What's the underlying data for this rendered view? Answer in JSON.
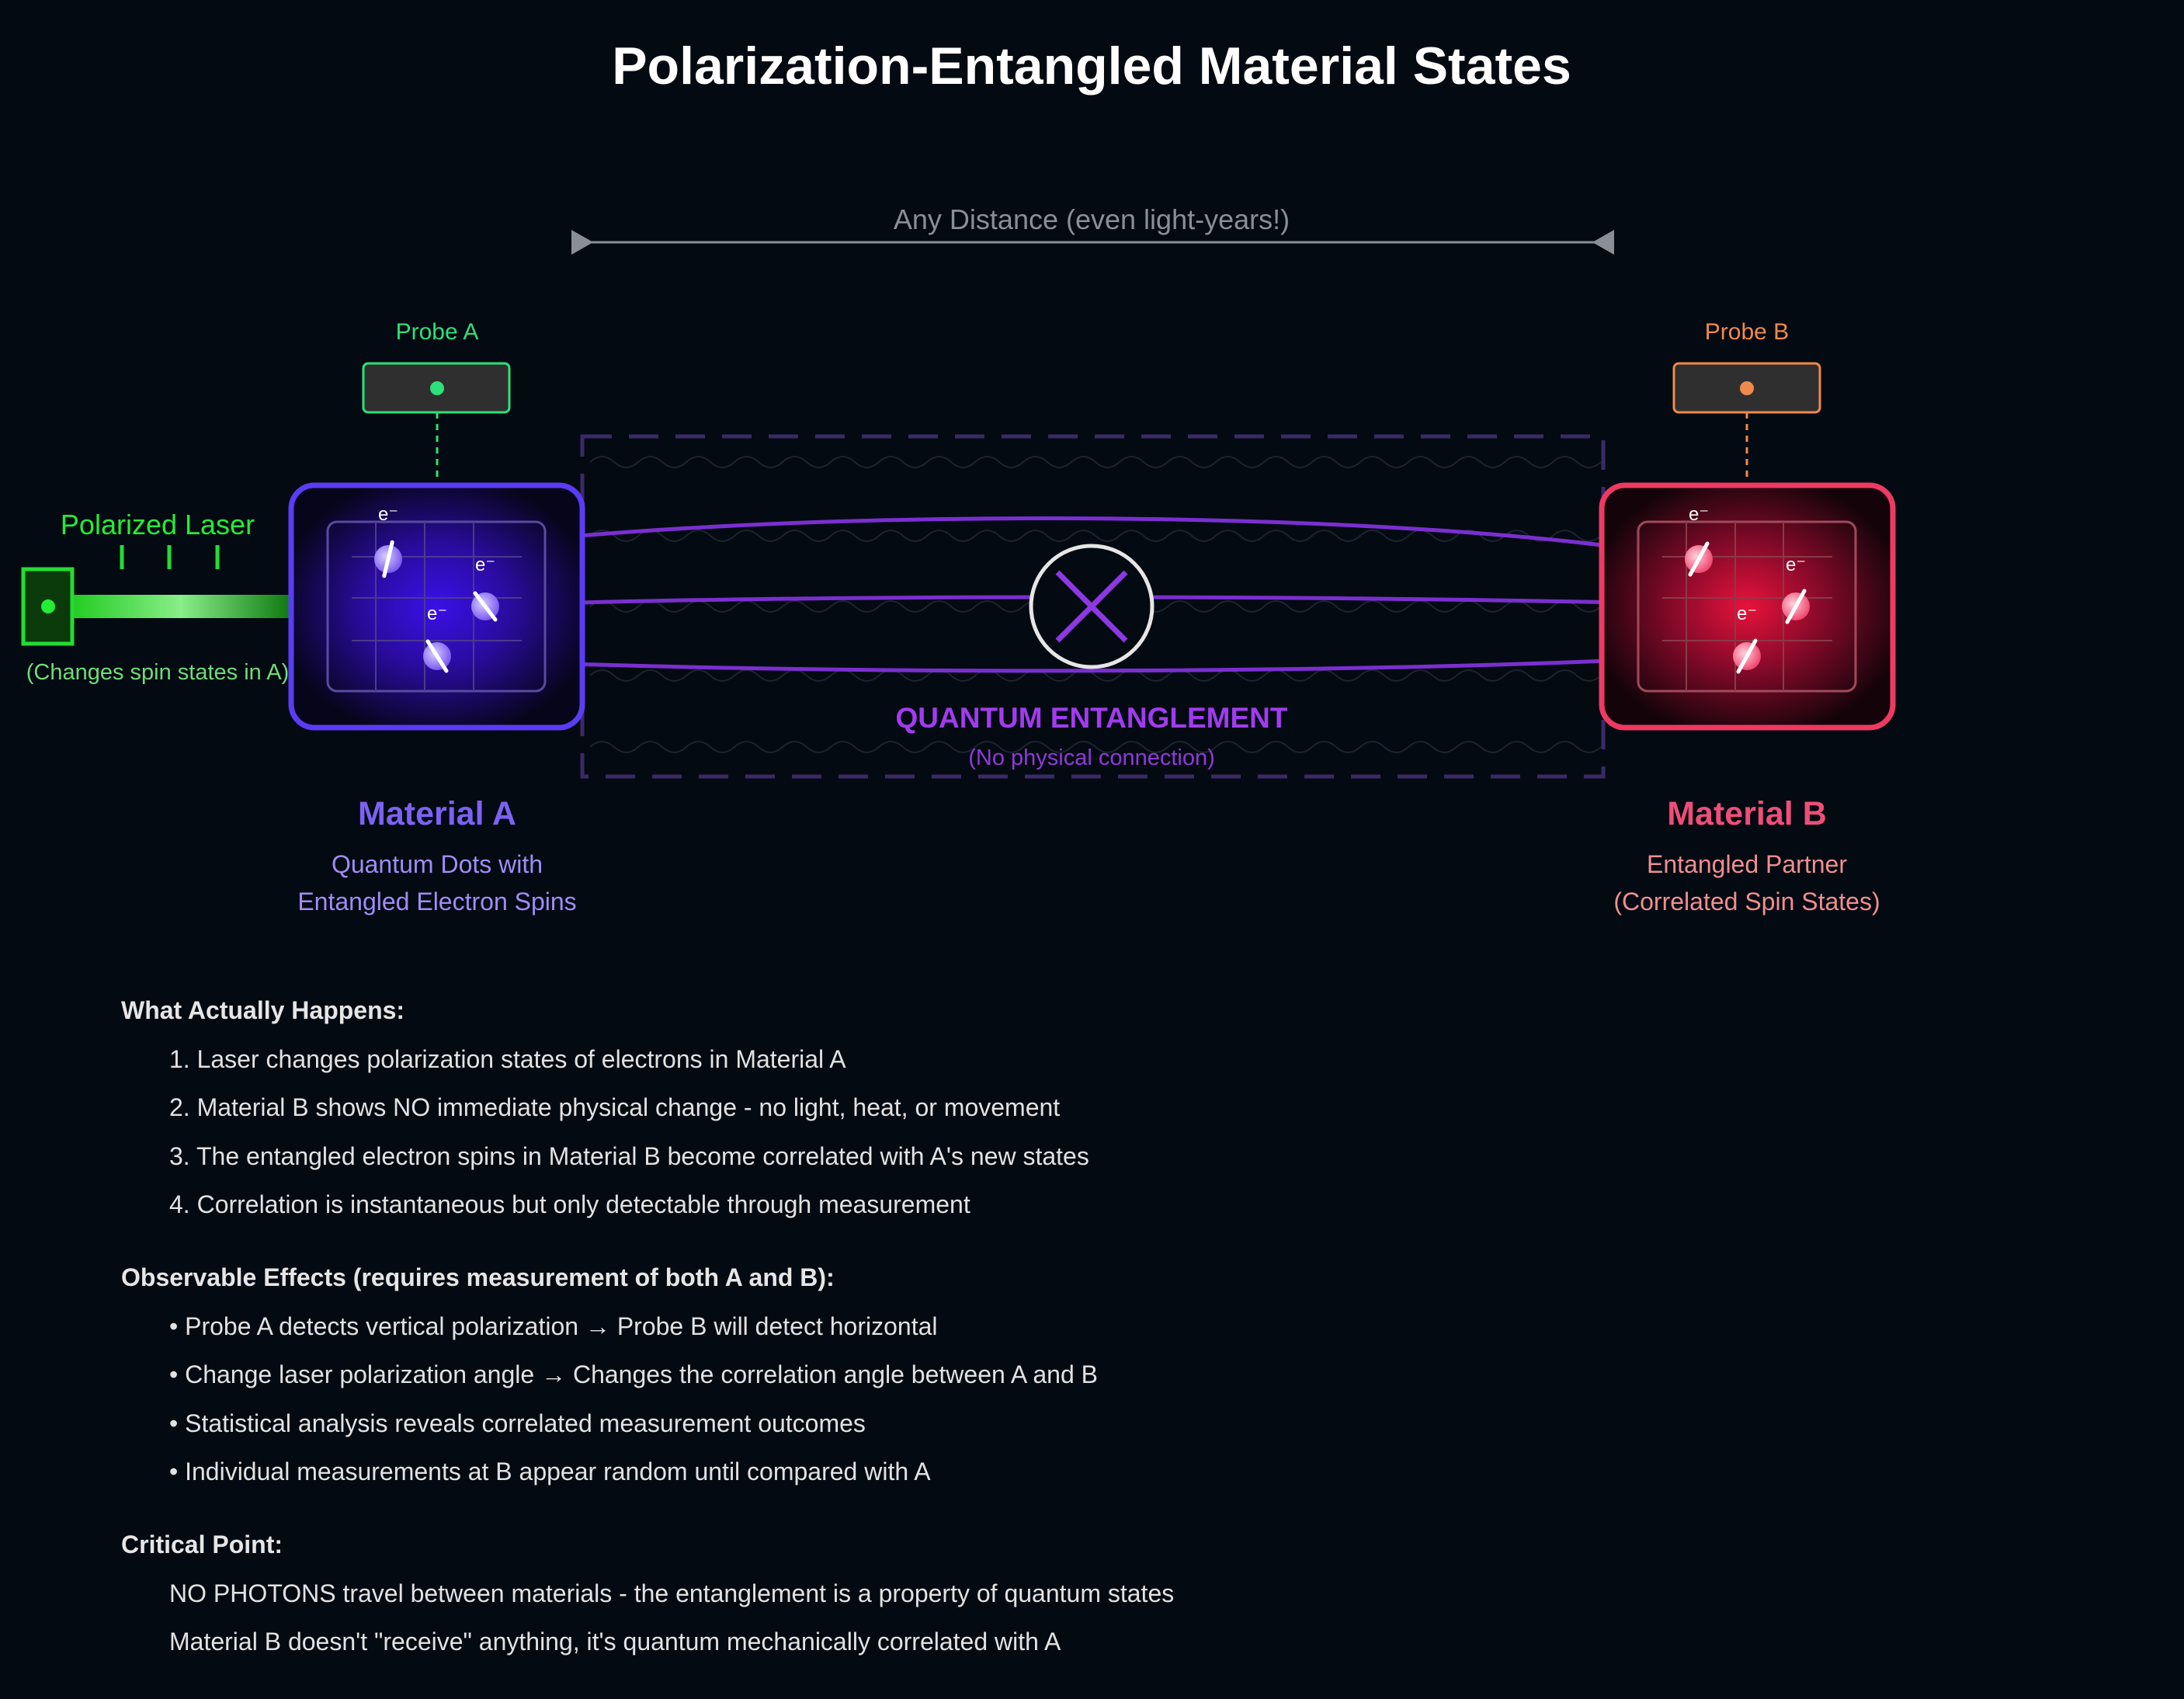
{
  "title": "Polarization-Entangled Material States",
  "distance_label": "Any Distance (even light-years!)",
  "probe_a": {
    "label": "Probe A"
  },
  "probe_b": {
    "label": "Probe B"
  },
  "laser": {
    "label": "Polarized Laser",
    "note": "(Changes spin states in A)"
  },
  "electron_label": "e⁻",
  "entanglement": {
    "title": "QUANTUM ENTANGLEMENT",
    "subtitle": "(No physical connection)"
  },
  "material_a": {
    "title": "Material A",
    "line1": "Quantum Dots with",
    "line2": "Entangled Electron Spins"
  },
  "material_b": {
    "title": "Material B",
    "line1": "Entangled Partner",
    "line2": "(Correlated Spin States)"
  },
  "sections": {
    "what_happens": {
      "heading": "What Actually Happens:",
      "items": [
        "1. Laser changes polarization states of electrons in Material A",
        "2. Material B shows NO immediate physical change - no light, heat, or movement",
        "3. The entangled electron spins in Material B become correlated with A's new states",
        "4. Correlation is instantaneous but only detectable through measurement"
      ]
    },
    "observable": {
      "heading": "Observable Effects (requires measurement of both A and B):",
      "items": [
        "• Probe A detects vertical polarization → Probe B will detect horizontal",
        "• Change laser polarization angle → Changes the correlation angle between A and B",
        "• Statistical analysis reveals correlated measurement outcomes",
        "• Individual measurements at B appear random until compared with A"
      ]
    },
    "critical": {
      "heading": "Critical Point:",
      "items": [
        "NO PHOTONS travel between materials - the entanglement is a property of quantum states",
        "Material B doesn't \"receive\" anything, it's quantum mechanically correlated with A"
      ]
    }
  },
  "colors": {
    "background": "#040a12",
    "material_a": "#5b3cf5",
    "material_b": "#ee3a62",
    "laser": "#22dd33",
    "entanglement": "#8a34d8",
    "probe_a": "#2ee07a",
    "probe_b": "#f08a4b"
  },
  "icons": [
    "laser-emitter-icon",
    "probe-a-indicator-icon",
    "probe-b-indicator-icon",
    "entanglement-cross-icon",
    "double-arrow-icon"
  ]
}
